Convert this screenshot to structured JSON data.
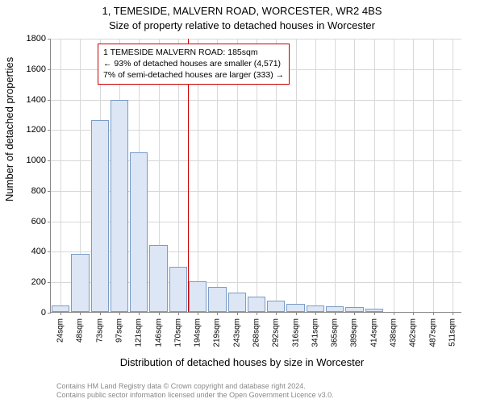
{
  "title": "1, TEMESIDE, MALVERN ROAD, WORCESTER, WR2 4BS",
  "subtitle": "Size of property relative to detached houses in Worcester",
  "ylabel": "Number of detached properties",
  "xlabel": "Distribution of detached houses by size in Worcester",
  "footer1": "Contains HM Land Registry data © Crown copyright and database right 2024.",
  "footer2": "Contains public sector information licensed under the Open Government Licence v3.0.",
  "annotation": {
    "line1": "1 TEMESIDE MALVERN ROAD: 185sqm",
    "line2": "← 93% of detached houses are smaller (4,571)",
    "line3": "7% of semi-detached houses are larger (333) →"
  },
  "chart": {
    "type": "histogram",
    "ylim": [
      0,
      1800
    ],
    "ytick_step": 200,
    "bar_color": "#dce6f5",
    "bar_border": "#7a9cc6",
    "grid_color": "#d8d8d8",
    "axis_color": "#888888",
    "marker_color": "#cc0000",
    "marker_x_index": 7,
    "title_fontsize": 13,
    "label_fontsize": 13,
    "tick_fontsize": 11,
    "categories": [
      "24sqm",
      "48sqm",
      "73sqm",
      "97sqm",
      "121sqm",
      "146sqm",
      "170sqm",
      "194sqm",
      "219sqm",
      "243sqm",
      "268sqm",
      "292sqm",
      "316sqm",
      "341sqm",
      "365sqm",
      "389sqm",
      "414sqm",
      "438sqm",
      "462sqm",
      "487sqm",
      "511sqm"
    ],
    "values": [
      40,
      380,
      1260,
      1390,
      1050,
      440,
      295,
      200,
      165,
      125,
      100,
      75,
      55,
      45,
      35,
      30,
      20,
      0,
      0,
      0,
      0
    ]
  }
}
